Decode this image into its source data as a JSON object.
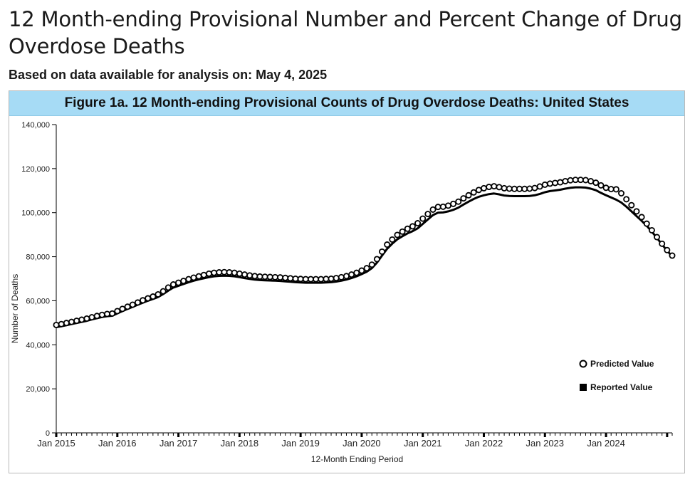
{
  "page": {
    "title": "12 Month-ending Provisional Number and Percent Change of Drug Overdose Deaths",
    "subtitle": "Based on data available for analysis on: May 4, 2025"
  },
  "chart_data": {
    "type": "line",
    "title": "Figure 1a. 12 Month-ending Provisional Counts of Drug Overdose Deaths: United States",
    "xlabel": "12-Month Ending Period",
    "ylabel": "Number of Deaths",
    "ylim": [
      0,
      140000
    ],
    "yticks": [
      0,
      20000,
      40000,
      60000,
      80000,
      100000,
      120000,
      140000
    ],
    "ytick_labels": [
      "0",
      "20,000",
      "40,000",
      "60,000",
      "80,000",
      "100,000",
      "120,000",
      "140,000"
    ],
    "xtick_labels": [
      "Jan 2015",
      "Jan 2016",
      "Jan 2017",
      "Jan 2018",
      "Jan 2019",
      "Jan 2020",
      "Jan 2021",
      "Jan 2022",
      "Jan 2023",
      "Jan 2024"
    ],
    "x_start": "Jan 2015",
    "x_end": "Dec 2024",
    "legend_position": "bottom-right",
    "series": [
      {
        "name": "Predicted Value",
        "marker": "open-circle",
        "color": "#000000",
        "values": [
          49000,
          49400,
          49900,
          50400,
          50900,
          51400,
          51900,
          52500,
          53100,
          53600,
          54000,
          54200,
          55300,
          56300,
          57300,
          58200,
          59200,
          60200,
          61100,
          61900,
          62900,
          64300,
          66000,
          67400,
          68200,
          69000,
          69800,
          70500,
          71100,
          71700,
          72300,
          72700,
          72900,
          73000,
          72900,
          72700,
          72300,
          71900,
          71500,
          71200,
          71000,
          70900,
          70800,
          70700,
          70600,
          70400,
          70200,
          70000,
          69900,
          69800,
          69800,
          69800,
          69800,
          69900,
          70000,
          70300,
          70700,
          71200,
          71900,
          72700,
          73700,
          74800,
          76400,
          78900,
          82300,
          85500,
          87800,
          89900,
          91400,
          92700,
          93800,
          95200,
          97300,
          99400,
          101400,
          102600,
          102700,
          103200,
          104000,
          105000,
          106500,
          107900,
          109200,
          110300,
          111100,
          111700,
          112000,
          111600,
          111100,
          110900,
          110800,
          110800,
          110800,
          110900,
          111200,
          111900,
          112700,
          113200,
          113500,
          113800,
          114300,
          114700,
          114900,
          114900,
          114800,
          114300,
          113600,
          112400,
          111300,
          110700,
          110600,
          108800,
          106100,
          103400,
          100600,
          98000,
          95000,
          92000,
          88900,
          85900,
          83000,
          80500
        ]
      },
      {
        "name": "Reported Value",
        "marker": "square",
        "color": "#000000",
        "values": [
          48000,
          48400,
          48900,
          49400,
          49900,
          50400,
          50900,
          51500,
          52100,
          52600,
          53000,
          53200,
          54300,
          55300,
          56300,
          57200,
          58200,
          59100,
          60000,
          60800,
          61700,
          63000,
          64600,
          66000,
          66800,
          67600,
          68400,
          69100,
          69700,
          70200,
          70700,
          71100,
          71300,
          71400,
          71300,
          71100,
          70700,
          70300,
          69900,
          69600,
          69400,
          69300,
          69200,
          69100,
          69000,
          68800,
          68600,
          68400,
          68300,
          68200,
          68200,
          68200,
          68200,
          68300,
          68400,
          68700,
          69100,
          69600,
          70300,
          71100,
          72100,
          73200,
          74800,
          77300,
          80500,
          83600,
          85900,
          87900,
          89300,
          90600,
          91600,
          92900,
          94900,
          96900,
          98900,
          100000,
          100100,
          100600,
          101300,
          102300,
          103700,
          105000,
          106200,
          107200,
          107900,
          108400,
          108700,
          108300,
          107800,
          107600,
          107500,
          107500,
          107500,
          107600,
          107900,
          108500,
          109300,
          109800,
          110100,
          110400,
          110900,
          111300,
          111500,
          111500,
          111400,
          110900,
          110200,
          109000,
          107900,
          106900,
          105900,
          104600,
          102700,
          100600,
          98400,
          96300,
          94000,
          91400,
          88500,
          85600,
          82700,
          80200
        ]
      }
    ]
  }
}
